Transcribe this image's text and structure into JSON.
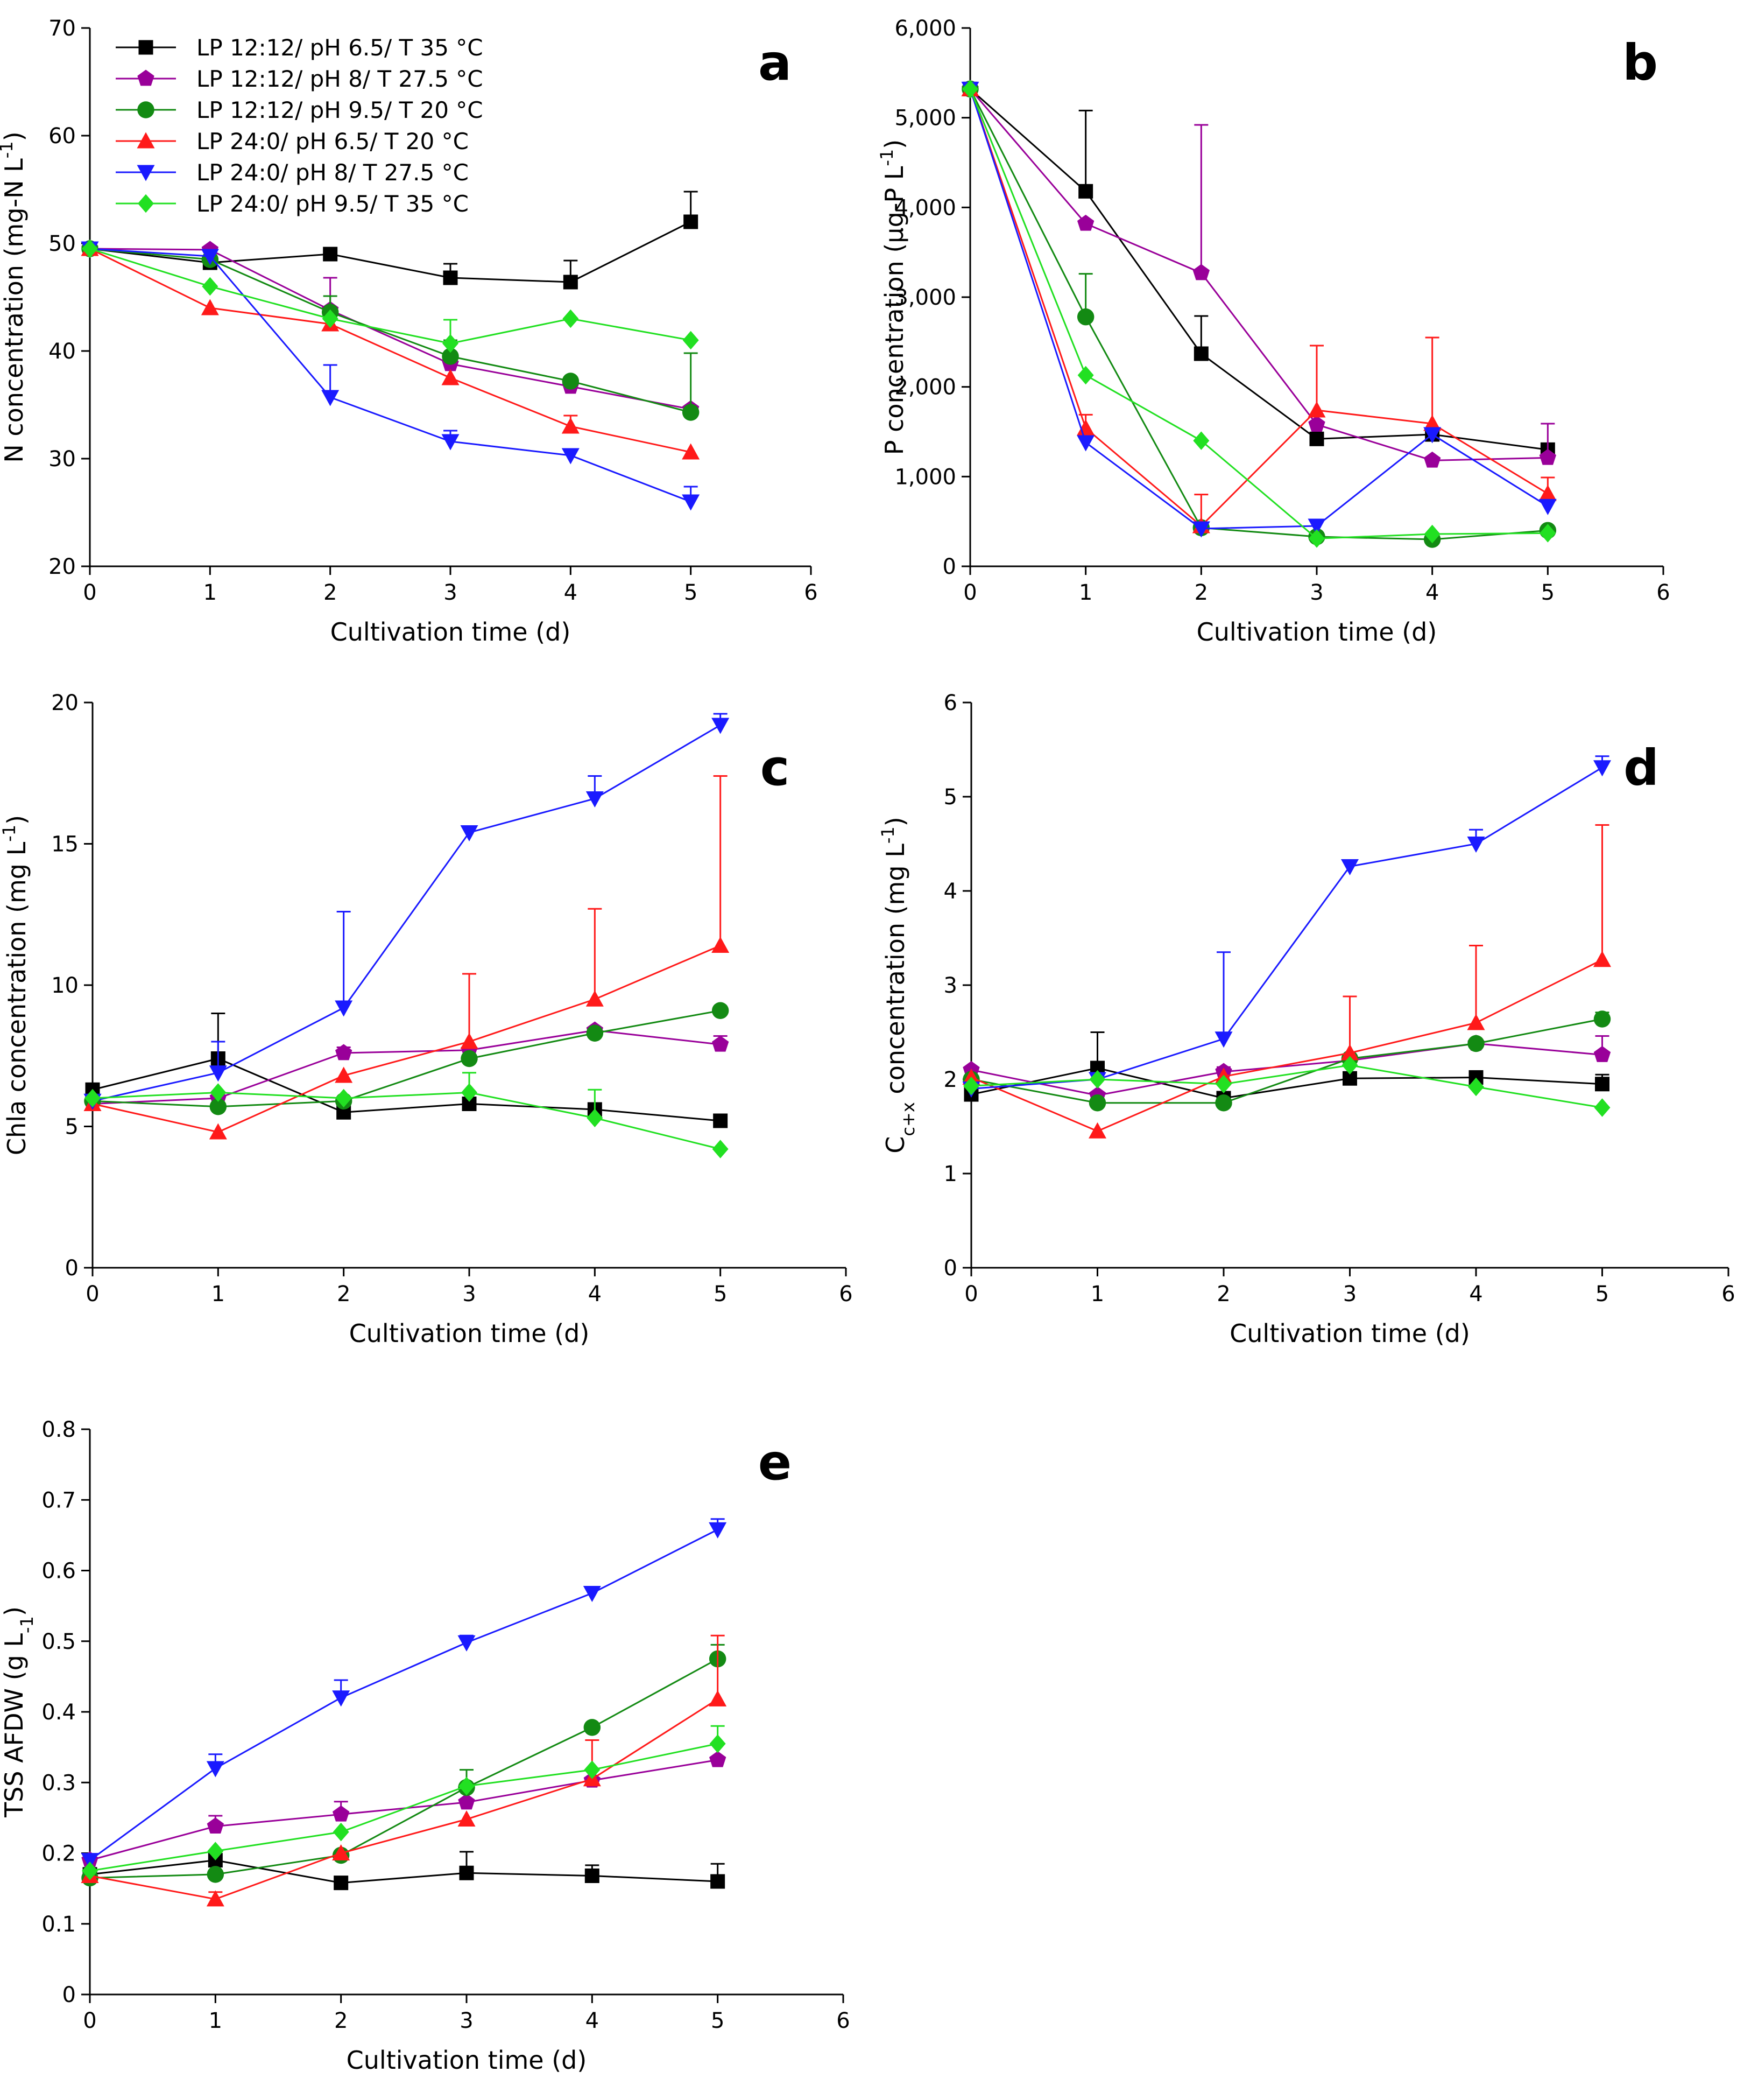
{
  "colors": {
    "black": "#000000",
    "purple": "#990099",
    "darkgreen": "#138a13",
    "red": "#ff1a1a",
    "blue": "#1a1aff",
    "lightgreen": "#22e022",
    "axis": "#000000"
  },
  "legend": [
    {
      "label": "LP 12:12/ pH 6.5/ T 35 °C",
      "color": "#000000",
      "marker": "square"
    },
    {
      "label": "LP 12:12/ pH 8/ T 27.5 °C",
      "color": "#990099",
      "marker": "pentagon"
    },
    {
      "label": "LP 12:12/ pH 9.5/ T 20 °C",
      "color": "#138a13",
      "marker": "circle"
    },
    {
      "label": "LP 24:0/ pH 6.5/ T 20 °C",
      "color": "#ff1a1a",
      "marker": "triangle-up"
    },
    {
      "label": "LP 24:0/ pH 8/ T 27.5 °C",
      "color": "#1a1aff",
      "marker": "triangle-down"
    },
    {
      "label": "LP 24:0/ pH 9.5/ T 35 °C",
      "color": "#22e022",
      "marker": "diamond"
    }
  ],
  "chart_data": [
    {
      "id": "a",
      "panel_label": "a",
      "type": "line",
      "xlabel": "Cultivation time (d)",
      "ylabel_main": "N concentration (mg-N L",
      "ylabel_sup": "-1",
      "ylabel_tail": ")",
      "ylabel_sub": "",
      "xlim": [
        0,
        6
      ],
      "ylim": [
        20,
        70
      ],
      "xticks": [
        "0",
        "1",
        "2",
        "3",
        "4",
        "5",
        "6"
      ],
      "yticks": [
        "20",
        "30",
        "40",
        "50",
        "60",
        "70"
      ],
      "x": [
        0,
        1,
        2,
        3,
        4,
        5
      ],
      "series": [
        {
          "name": "LP 12:12/ pH 6.5/ T 35 °C",
          "values": [
            49.5,
            48.2,
            49.0,
            46.8,
            46.4,
            52.0
          ],
          "err": [
            0,
            0,
            0,
            1.3,
            2.0,
            2.8
          ]
        },
        {
          "name": "LP 12:12/ pH 8/ T 27.5 °C",
          "values": [
            49.5,
            49.4,
            43.8,
            38.8,
            36.7,
            34.6
          ],
          "err": [
            0,
            0,
            3.0,
            0,
            0,
            0
          ]
        },
        {
          "name": "LP 12:12/ pH 9.5/ T 20 °C",
          "values": [
            49.5,
            48.5,
            43.6,
            39.5,
            37.2,
            34.3
          ],
          "err": [
            0,
            0,
            1.5,
            1.5,
            0,
            5.5
          ]
        },
        {
          "name": "LP 24:0/ pH 6.5/ T 20 °C",
          "values": [
            49.5,
            44.0,
            42.5,
            37.5,
            33.0,
            30.6
          ],
          "err": [
            0,
            0,
            0,
            0,
            1.0,
            0
          ]
        },
        {
          "name": "LP 24:0/ pH 8/ T 27.5 °C",
          "values": [
            49.5,
            48.8,
            35.7,
            31.6,
            30.3,
            26.0
          ],
          "err": [
            0,
            0,
            3.0,
            1.0,
            0,
            1.4
          ]
        },
        {
          "name": "LP 24:0/ pH 9.5/ T 35 °C",
          "values": [
            49.5,
            46.0,
            43.0,
            40.7,
            43.0,
            41.0
          ],
          "err": [
            0,
            0,
            0,
            2.2,
            0,
            0
          ]
        }
      ]
    },
    {
      "id": "b",
      "panel_label": "b",
      "type": "line",
      "xlabel": "Cultivation time (d)",
      "ylabel_main": "P concentration (µg-P L",
      "ylabel_sup": "-1",
      "ylabel_tail": ")",
      "ylabel_sub": "",
      "xlim": [
        0,
        6
      ],
      "ylim": [
        0,
        6000
      ],
      "xticks": [
        "0",
        "1",
        "2",
        "3",
        "4",
        "5",
        "6"
      ],
      "yticks": [
        "0",
        "1,000",
        "2,000",
        "3,000",
        "4,000",
        "5,000",
        "6,000"
      ],
      "x": [
        0,
        1,
        2,
        3,
        4,
        5
      ],
      "series": [
        {
          "name": "LP 12:12/ pH 6.5/ T 35 °C",
          "values": [
            5320,
            4180,
            2370,
            1420,
            1470,
            1300
          ],
          "err": [
            0,
            900,
            420,
            0,
            0,
            0
          ]
        },
        {
          "name": "LP 12:12/ pH 8/ T 27.5 °C",
          "values": [
            5320,
            3820,
            3270,
            1580,
            1180,
            1210
          ],
          "err": [
            0,
            0,
            1650,
            0,
            0,
            380
          ]
        },
        {
          "name": "LP 12:12/ pH 9.5/ T 20 °C",
          "values": [
            5320,
            2780,
            430,
            330,
            300,
            400
          ],
          "err": [
            0,
            480,
            0,
            0,
            0,
            0
          ]
        },
        {
          "name": "LP 24:0/ pH 6.5/ T 20 °C",
          "values": [
            5320,
            1540,
            450,
            1740,
            1590,
            810
          ],
          "err": [
            0,
            150,
            350,
            720,
            960,
            180
          ]
        },
        {
          "name": "LP 24:0/ pH 8/ T 27.5 °C",
          "values": [
            5320,
            1380,
            420,
            450,
            1470,
            670
          ],
          "err": [
            0,
            0,
            0,
            0,
            0,
            0
          ]
        },
        {
          "name": "LP 24:0/ pH 9.5/ T 35 °C",
          "values": [
            5320,
            2130,
            1400,
            310,
            360,
            370
          ],
          "err": [
            0,
            0,
            0,
            0,
            0,
            0
          ]
        }
      ]
    },
    {
      "id": "c",
      "panel_label": "c",
      "type": "line",
      "xlabel": "Cultivation time (d)",
      "ylabel_main": "Chla concentration (mg L",
      "ylabel_sup": "-1",
      "ylabel_tail": ")",
      "ylabel_sub": "",
      "xlim": [
        0,
        6
      ],
      "ylim": [
        0,
        20
      ],
      "xticks": [
        "0",
        "1",
        "2",
        "3",
        "4",
        "5",
        "6"
      ],
      "yticks": [
        "0",
        "5",
        "10",
        "15",
        "20"
      ],
      "x": [
        0,
        1,
        2,
        3,
        4,
        5
      ],
      "series": [
        {
          "name": "LP 12:12/ pH 6.5/ T 35 °C",
          "values": [
            6.3,
            7.4,
            5.5,
            5.8,
            5.6,
            5.2
          ],
          "err": [
            0,
            1.6,
            0,
            0,
            0,
            0
          ]
        },
        {
          "name": "LP 12:12/ pH 8/ T 27.5 °C",
          "values": [
            5.8,
            6.0,
            7.6,
            7.7,
            8.4,
            7.9
          ],
          "err": [
            0,
            0,
            0.2,
            0,
            0,
            0.3
          ]
        },
        {
          "name": "LP 12:12/ pH 9.5/ T 20 °C",
          "values": [
            5.9,
            5.7,
            5.9,
            7.4,
            8.3,
            9.1
          ],
          "err": [
            0,
            0,
            0,
            0,
            0,
            0
          ]
        },
        {
          "name": "LP 24:0/ pH 6.5/ T 20 °C",
          "values": [
            5.8,
            4.8,
            6.8,
            8.0,
            9.5,
            11.4
          ],
          "err": [
            0,
            0,
            0,
            2.4,
            3.2,
            6.0
          ]
        },
        {
          "name": "LP 24:0/ pH 8/ T 27.5 °C",
          "values": [
            5.9,
            6.9,
            9.2,
            15.4,
            16.6,
            19.2
          ],
          "err": [
            0,
            1.1,
            3.4,
            0,
            0.8,
            0.4
          ]
        },
        {
          "name": "LP 24:0/ pH 9.5/ T 35 °C",
          "values": [
            6.0,
            6.2,
            6.0,
            6.2,
            5.3,
            4.2
          ],
          "err": [
            0,
            0,
            0,
            0.7,
            1.0,
            0
          ]
        }
      ]
    },
    {
      "id": "d",
      "panel_label": "d",
      "type": "line",
      "xlabel": "Cultivation time (d)",
      "ylabel_main": "C",
      "ylabel_sup": "",
      "ylabel_tail": " concentration (mg L",
      "ylabel_sub": "c+x",
      "ylabel_sup2": "-1",
      "ylabel_tail2": ")",
      "xlim": [
        0,
        6
      ],
      "ylim": [
        0,
        6
      ],
      "xticks": [
        "0",
        "1",
        "2",
        "3",
        "4",
        "5",
        "6"
      ],
      "yticks": [
        "0",
        "1",
        "2",
        "3",
        "4",
        "5",
        "6"
      ],
      "x": [
        0,
        1,
        2,
        3,
        4,
        5
      ],
      "series": [
        {
          "name": "LP 12:12/ pH 6.5/ T 35 °C",
          "values": [
            1.84,
            2.12,
            1.8,
            2.01,
            2.02,
            1.95
          ],
          "err": [
            0,
            0.38,
            0,
            0,
            0,
            0.1
          ]
        },
        {
          "name": "LP 12:12/ pH 8/ T 27.5 °C",
          "values": [
            2.1,
            1.83,
            2.08,
            2.2,
            2.38,
            2.26
          ],
          "err": [
            0,
            0,
            0.05,
            0,
            0,
            0.2
          ]
        },
        {
          "name": "LP 12:12/ pH 9.5/ T 20 °C",
          "values": [
            2.0,
            1.75,
            1.75,
            2.22,
            2.38,
            2.64
          ],
          "err": [
            0,
            0,
            0,
            0,
            0,
            0.07
          ]
        },
        {
          "name": "LP 24:0/ pH 6.5/ T 20 °C",
          "values": [
            2.02,
            1.45,
            2.03,
            2.28,
            2.6,
            3.27
          ],
          "err": [
            0,
            0,
            0,
            0.6,
            0.82,
            1.43
          ]
        },
        {
          "name": "LP 24:0/ pH 8/ T 27.5 °C",
          "values": [
            1.9,
            2.0,
            2.43,
            4.26,
            4.5,
            5.31
          ],
          "err": [
            0,
            0,
            0.92,
            0,
            0.15,
            0.12
          ]
        },
        {
          "name": "LP 24:0/ pH 9.5/ T 35 °C",
          "values": [
            1.93,
            2.0,
            1.95,
            2.15,
            1.92,
            1.7
          ],
          "err": [
            0,
            0,
            0,
            0,
            0,
            0
          ]
        }
      ]
    },
    {
      "id": "e",
      "panel_label": "e",
      "type": "line",
      "xlabel": "Cultivation time (d)",
      "ylabel_main": "TSS AFDW (g L",
      "ylabel_sup": "",
      "ylabel_tail": ")",
      "ylabel_sub": "-1",
      "xlim": [
        0,
        6
      ],
      "ylim": [
        0,
        0.8
      ],
      "xticks": [
        "0",
        "1",
        "2",
        "3",
        "4",
        "5",
        "6"
      ],
      "yticks": [
        "0",
        "0.1",
        "0.2",
        "0.3",
        "0.4",
        "0.5",
        "0.6",
        "0.7",
        "0.8"
      ],
      "x": [
        0,
        1,
        2,
        3,
        4,
        5
      ],
      "series": [
        {
          "name": "LP 12:12/ pH 6.5/ T 35 °C",
          "values": [
            0.17,
            0.19,
            0.158,
            0.172,
            0.168,
            0.16
          ],
          "err": [
            0,
            0,
            0,
            0.03,
            0.015,
            0.025
          ]
        },
        {
          "name": "LP 12:12/ pH 8/ T 27.5 °C",
          "values": [
            0.19,
            0.238,
            0.255,
            0.272,
            0.303,
            0.332
          ],
          "err": [
            0,
            0.015,
            0.018,
            0,
            0,
            0
          ]
        },
        {
          "name": "LP 12:12/ pH 9.5/ T 20 °C",
          "values": [
            0.165,
            0.17,
            0.197,
            0.293,
            0.378,
            0.475
          ],
          "err": [
            0,
            0,
            0,
            0.025,
            0,
            0.02
          ]
        },
        {
          "name": "LP 24:0/ pH 6.5/ T 20 °C",
          "values": [
            0.168,
            0.135,
            0.2,
            0.248,
            0.305,
            0.418
          ],
          "err": [
            0,
            0.01,
            0,
            0,
            0.055,
            0.09
          ]
        },
        {
          "name": "LP 24:0/ pH 8/ T 27.5 °C",
          "values": [
            0.19,
            0.32,
            0.42,
            0.498,
            0.568,
            0.658
          ],
          "err": [
            0,
            0.02,
            0.025,
            0.01,
            0,
            0.015
          ]
        },
        {
          "name": "LP 24:0/ pH 9.5/ T 35 °C",
          "values": [
            0.175,
            0.203,
            0.23,
            0.295,
            0.318,
            0.355
          ],
          "err": [
            0,
            0,
            0,
            0,
            0,
            0.025
          ]
        }
      ]
    }
  ]
}
